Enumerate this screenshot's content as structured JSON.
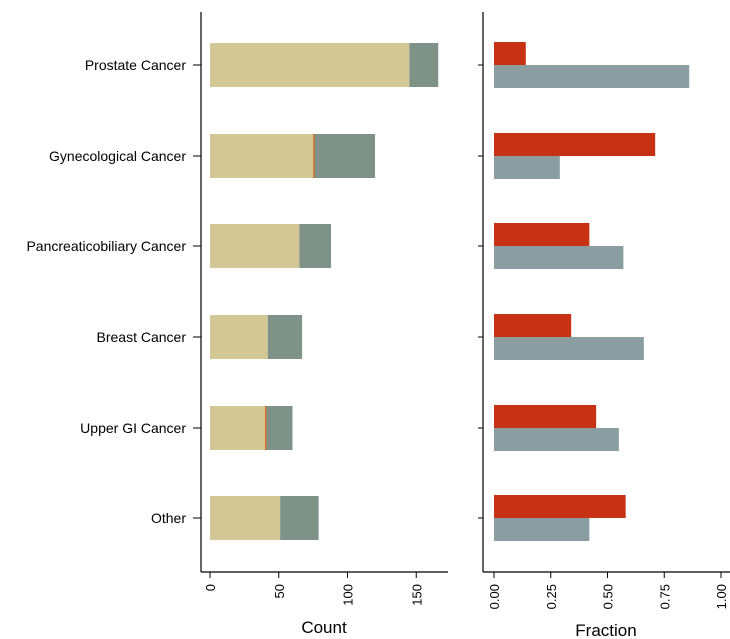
{
  "chart_data": [
    {
      "type": "bar",
      "orientation": "horizontal",
      "stacked": true,
      "xlabel": "Count",
      "xlim": [
        0,
        175
      ],
      "xticks": [
        "0",
        "50",
        "100",
        "150"
      ],
      "categories": [
        "Prostate Cancer",
        "Gynecological Cancer",
        "Pancreaticobiliary Cancer",
        "Breast Cancer",
        "Upper GI Cancer",
        "Other"
      ],
      "series": [
        {
          "values": [
            145,
            75,
            65,
            42,
            40,
            51
          ],
          "color": "#d2c795"
        },
        {
          "values": [
            0,
            1,
            0,
            0,
            1,
            0
          ],
          "color": "#d9661f"
        },
        {
          "values": [
            21,
            44,
            23,
            25,
            19,
            28
          ],
          "color": "#7e9287"
        }
      ],
      "grid": false,
      "legend": "none"
    },
    {
      "type": "bar",
      "orientation": "horizontal",
      "grouped": true,
      "xlabel": "Fraction",
      "xlim": [
        0,
        1.0
      ],
      "xticks": [
        "0.00",
        "0.25",
        "0.50",
        "0.75",
        "1.00"
      ],
      "categories": [
        "Prostate Cancer",
        "Gynecological Cancer",
        "Pancreaticobiliary Cancer",
        "Breast Cancer",
        "Upper GI Cancer",
        "Other"
      ],
      "series": [
        {
          "values": [
            0.14,
            0.71,
            0.42,
            0.34,
            0.45,
            0.58
          ],
          "color": "#c83214"
        },
        {
          "values": [
            0.86,
            0.29,
            0.57,
            0.66,
            0.55,
            0.42
          ],
          "color": "#8a9ea2"
        }
      ],
      "grid": false,
      "legend": "none"
    }
  ]
}
